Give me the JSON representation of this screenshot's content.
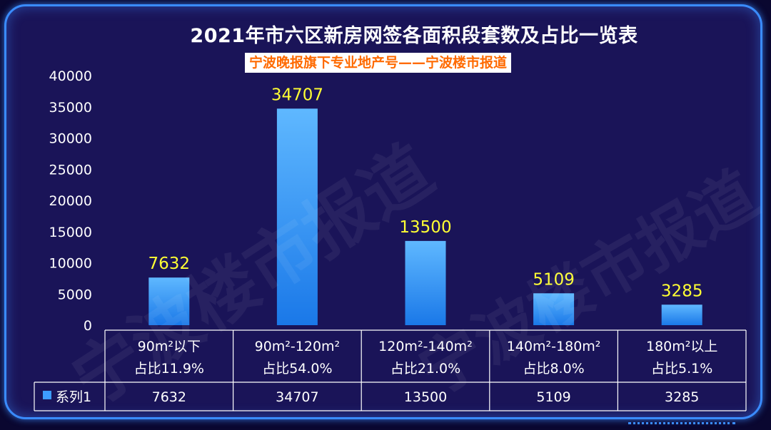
{
  "chart_data": {
    "type": "bar",
    "title": "2021年市六区新房网签各面积段套数及占比一览表",
    "subtitle": "宁波晚报旗下专业地产号——宁波楼市报道",
    "categories": [
      [
        "90m²以下",
        "占比11.9%"
      ],
      [
        "90m²-120m²",
        "占比54.0%"
      ],
      [
        "120m²-140m²",
        "占比21.0%"
      ],
      [
        "140m²-180m²",
        "占比8.0%"
      ],
      [
        "180m²以上",
        "占比5.1%"
      ]
    ],
    "series": [
      {
        "name": "系列1",
        "values": [
          7632,
          34707,
          13500,
          5109,
          3285
        ]
      }
    ],
    "ylim": [
      0,
      40000
    ],
    "yticks": [
      0,
      5000,
      10000,
      15000,
      20000,
      25000,
      30000,
      35000,
      40000
    ],
    "grid": false,
    "data_table": true,
    "colors": {
      "bar_top": "#5fb8ff",
      "bar_bottom": "#1a78e8",
      "data_label": "#ffff33",
      "axis_text": "#ffffff",
      "table_border": "#ffffff",
      "legend_key": "#3d9cff"
    }
  },
  "watermark": "宁波楼市报道"
}
